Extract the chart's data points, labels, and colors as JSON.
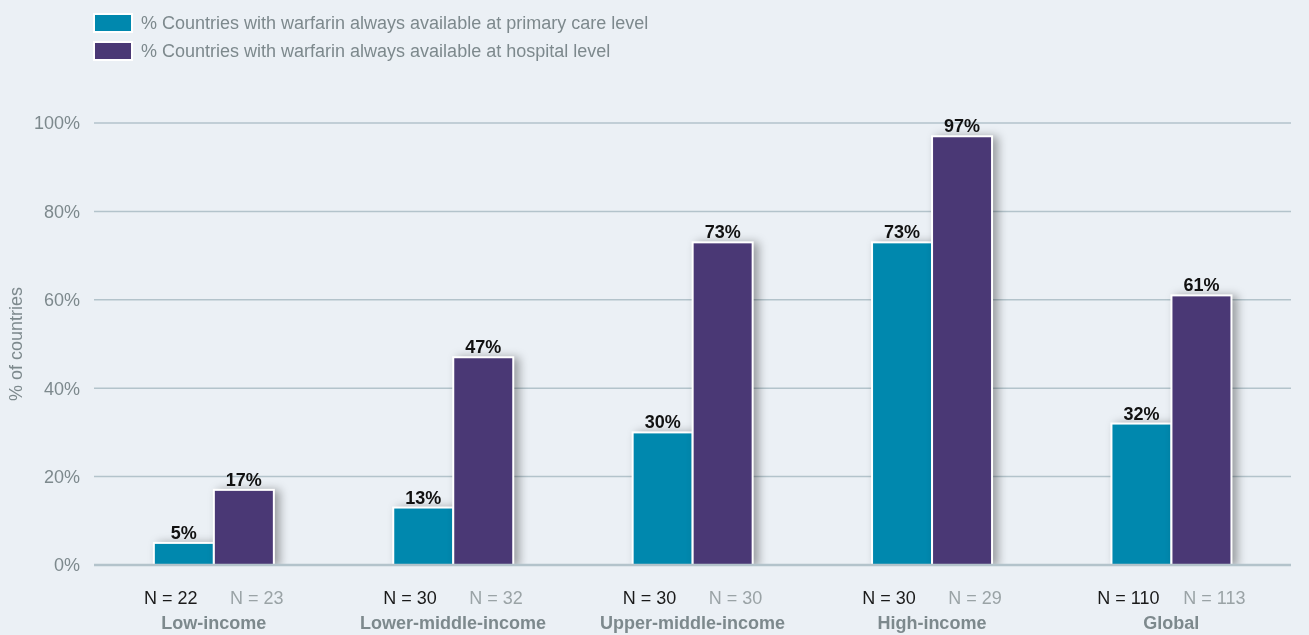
{
  "chart_data": {
    "type": "bar",
    "categories": [
      "Low-income",
      "Lower-middle-income",
      "Upper-middle-income",
      "High-income",
      "Global"
    ],
    "series": [
      {
        "name": "% Countries with warfarin always available at primary care level",
        "color": "#0088ae",
        "values": [
          5,
          13,
          30,
          73,
          32
        ],
        "value_labels": [
          "5%",
          "13%",
          "30%",
          "73%",
          "32%"
        ]
      },
      {
        "name": "% Countries with warfarin always available at hospital level",
        "color": "#4a3875",
        "values": [
          17,
          47,
          73,
          97,
          61
        ],
        "value_labels": [
          "17%",
          "47%",
          "73%",
          "97%",
          "61%"
        ]
      }
    ],
    "ylabel": "% of countries",
    "ylim": [
      0,
      100
    ],
    "yticks": [
      {
        "value": 0,
        "label": "0%"
      },
      {
        "value": 20,
        "label": "20%"
      },
      {
        "value": 40,
        "label": "40%"
      },
      {
        "value": 60,
        "label": "60%"
      },
      {
        "value": 80,
        "label": "80%"
      },
      {
        "value": 100,
        "label": "100%"
      }
    ],
    "grid": "y",
    "legend": "top left",
    "annotations": [
      "N = 22",
      "N = 23",
      "N = 30",
      "N = 32",
      "N = 30",
      "N = 30",
      "N = 30",
      "N = 29",
      "N = 110",
      "N = 113"
    ]
  }
}
